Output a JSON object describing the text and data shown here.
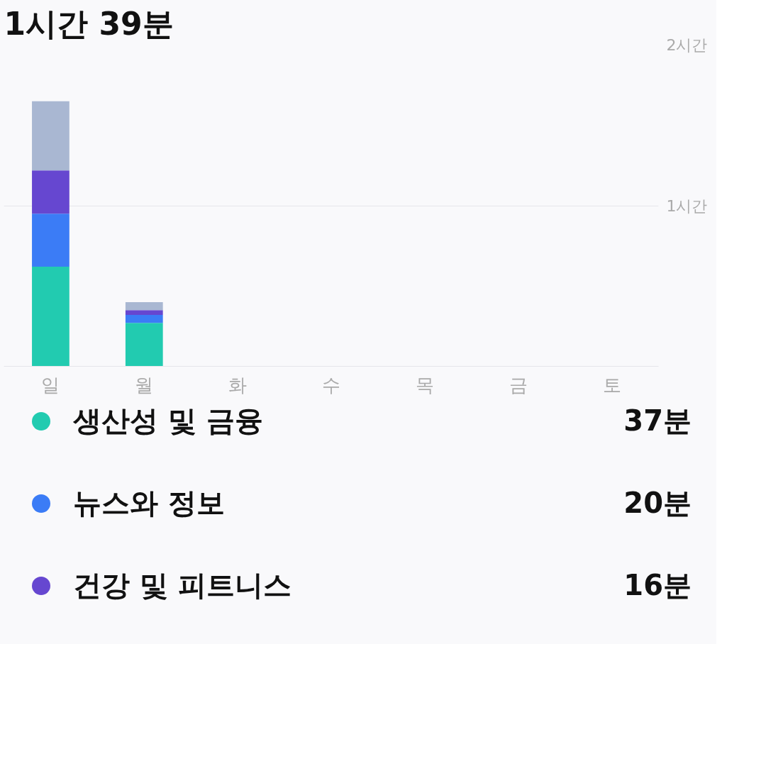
{
  "chart_data": {
    "type": "bar",
    "title": "1시간 39분",
    "stacked": true,
    "categories": [
      "일",
      "월",
      "화",
      "수",
      "목",
      "금",
      "토"
    ],
    "series": [
      {
        "name": "생산성 및 금융",
        "color": "#22cbb0",
        "values": [
          0.62,
          0.27,
          null,
          null,
          null,
          null,
          null
        ]
      },
      {
        "name": "뉴스와 정보",
        "color": "#3b7cf6",
        "values": [
          0.33,
          0.05,
          null,
          null,
          null,
          null,
          null
        ]
      },
      {
        "name": "건강 및 피트니스",
        "color": "#6647d0",
        "values": [
          0.27,
          0.03,
          null,
          null,
          null,
          null,
          null
        ]
      },
      {
        "color": "#a9b7d2",
        "values": [
          0.43,
          0.05,
          null,
          null,
          null,
          null,
          null
        ]
      }
    ],
    "ylim": [
      0,
      2
    ],
    "yticks": [
      {
        "value": 1,
        "label": "1시간"
      },
      {
        "value": 2,
        "label": "2시간"
      }
    ],
    "grid": "y",
    "legend": "bottom",
    "annotations": [
      "37분",
      "20분",
      "16분"
    ]
  }
}
